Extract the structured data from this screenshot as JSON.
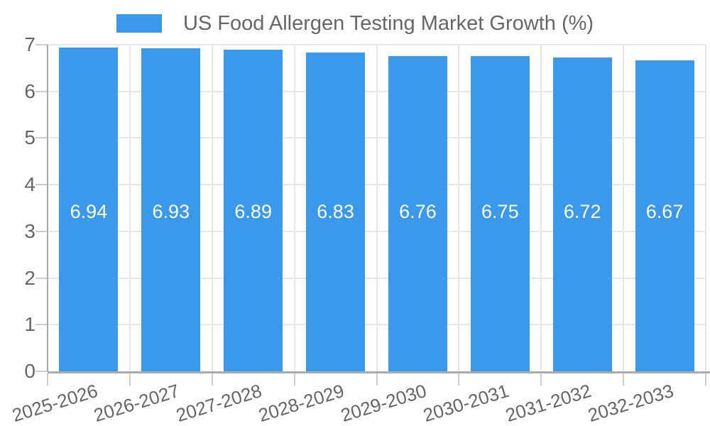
{
  "chart_data": {
    "type": "bar",
    "title": "US Food Allergen Testing Market Growth (%)",
    "legend": {
      "label": "US Food Allergen Testing Market Growth (%)",
      "position": "top"
    },
    "categories": [
      "2025-2026",
      "2026-2027",
      "2027-2028",
      "2028-2029",
      "2029-2030",
      "2030-2031",
      "2031-2032",
      "2032-2033"
    ],
    "series": [
      {
        "name": "US Food Allergen Testing Market Growth (%)",
        "values": [
          6.94,
          6.93,
          6.89,
          6.83,
          6.76,
          6.75,
          6.72,
          6.67
        ],
        "display_values": [
          "6.94",
          "6.93",
          "6.89",
          "6.83",
          "6.76",
          "6.75",
          "6.72",
          "6.67"
        ]
      }
    ],
    "xlabel": "",
    "ylabel": "",
    "ylim": [
      0,
      7
    ],
    "y_ticks": [
      "0",
      "1",
      "2",
      "3",
      "4",
      "5",
      "6",
      "7"
    ],
    "grid": "on",
    "value_labels_inside_bars": true,
    "colors": {
      "bar": "#3B99EC",
      "bar_value_text": "#FFFFFF",
      "axis_text": "#666666",
      "legend_text": "#666666",
      "gridline": "#E6E6E6",
      "axis_line": "#A9A9A9",
      "tick_mark": "#CDCDCD",
      "background": "#FFFFFF"
    }
  }
}
